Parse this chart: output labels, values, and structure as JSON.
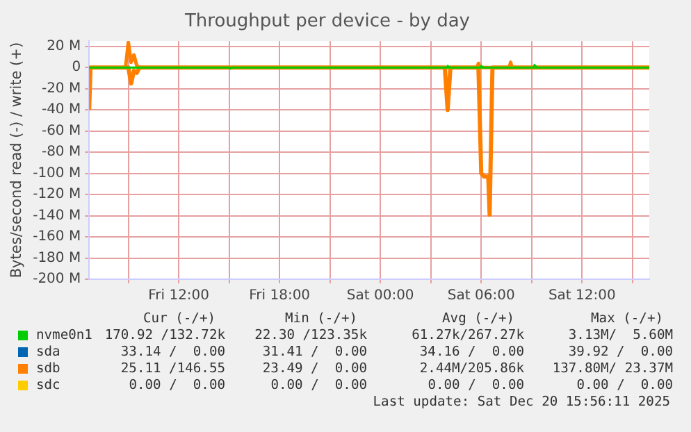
{
  "chart_data": {
    "type": "line",
    "title": "Throughput per device - by day",
    "ylabel": "Bytes/second read (-) / write (+)",
    "xlim": [
      "2025-12-19T06:40",
      "2025-12-20T16:00"
    ],
    "xticks": [
      {
        "value": "2025-12-19T09:00",
        "label": null
      },
      {
        "value": "2025-12-19T12:00",
        "label": "Fri 12:00"
      },
      {
        "value": "2025-12-19T15:00",
        "label": null
      },
      {
        "value": "2025-12-19T18:00",
        "label": "Fri 18:00"
      },
      {
        "value": "2025-12-19T21:00",
        "label": null
      },
      {
        "value": "2025-12-20T00:00",
        "label": "Sat 00:00"
      },
      {
        "value": "2025-12-20T03:00",
        "label": null
      },
      {
        "value": "2025-12-20T06:00",
        "label": "Sat 06:00"
      },
      {
        "value": "2025-12-20T09:00",
        "label": null
      },
      {
        "value": "2025-12-20T12:00",
        "label": "Sat 12:00"
      },
      {
        "value": "2025-12-20T15:00",
        "label": null
      }
    ],
    "ylim": [
      -200,
      25
    ],
    "yticks": [
      {
        "value": 20,
        "label": "20 M"
      },
      0,
      {
        "value": -20,
        "label": "-20 M"
      },
      {
        "value": -40,
        "label": "-40 M"
      },
      {
        "value": -60,
        "label": "-60 M"
      },
      {
        "value": -80,
        "label": "-80 M"
      },
      {
        "value": -100,
        "label": "-100 M"
      },
      {
        "value": -120,
        "label": "-120 M"
      },
      {
        "value": -140,
        "label": "-140 M"
      },
      {
        "value": -160,
        "label": "-160 M"
      },
      {
        "value": -180,
        "label": "-180 M"
      },
      {
        "value": -200,
        "label": "-200 M"
      }
    ],
    "grid": true,
    "legend": "bottom",
    "marker": "none",
    "line_style": "solid",
    "series": [
      {
        "name": "nvme0n1",
        "color": "#00cc00",
        "x": [
          "2025-12-19T06:40",
          "2025-12-20T03:55",
          "2025-12-20T04:00",
          "2025-12-20T04:10",
          "2025-12-20T05:55",
          "2025-12-20T06:00",
          "2025-12-20T06:10",
          "2025-12-20T09:05",
          "2025-12-20T09:10",
          "2025-12-20T09:20",
          "2025-12-20T16:00"
        ],
        "values": [
          0,
          0,
          2,
          0,
          0,
          2,
          0,
          0,
          3,
          0,
          0
        ]
      },
      {
        "color": "#00cc00",
        "x": [
          "2025-12-19T06:40",
          "2025-12-19T15:00",
          "2025-12-19T15:05",
          "2025-12-19T15:10",
          "2025-12-20T16:00"
        ],
        "values": [
          0,
          0,
          -1,
          0,
          0
        ]
      },
      {
        "name": "sda",
        "color": "#0066b3"
      },
      {
        "name": "sdb",
        "color": "#ff8000",
        "x": [
          "2025-12-19T06:40",
          "2025-12-19T08:50",
          "2025-12-19T09:00",
          "2025-12-19T09:10",
          "2025-12-19T09:20",
          "2025-12-19T09:30",
          "2025-12-19T09:40",
          "2025-12-20T05:45",
          "2025-12-20T05:50",
          "2025-12-20T05:55",
          "2025-12-20T07:40",
          "2025-12-20T07:45",
          "2025-12-20T07:50",
          "2025-12-20T16:00"
        ],
        "values": [
          0,
          0,
          24,
          5,
          12,
          2,
          0,
          0,
          4,
          0,
          0,
          5,
          0,
          0
        ]
      },
      {
        "color": "#ff8000",
        "x": [
          "2025-12-19T06:40",
          "2025-12-19T06:45",
          "2025-12-19T09:00",
          "2025-12-19T09:10",
          "2025-12-19T09:20",
          "2025-12-19T09:30",
          "2025-12-19T09:40",
          "2025-12-20T03:50",
          "2025-12-20T04:00",
          "2025-12-20T04:10",
          "2025-12-20T05:50",
          "2025-12-20T06:00",
          "2025-12-20T06:10",
          "2025-12-20T06:25",
          "2025-12-20T06:30",
          "2025-12-20T06:40",
          "2025-12-20T16:00"
        ],
        "values": [
          -40,
          0,
          0,
          -15,
          -3,
          -5,
          0,
          0,
          -40,
          0,
          0,
          -100,
          -103,
          -103,
          -139,
          0,
          0
        ]
      },
      {
        "name": "sdc",
        "color": "#ffcc00"
      }
    ],
    "annotations": [
      "Cur (-/+)",
      "Min (-/+)",
      "Avg (-/+)",
      "Max (-/+)",
      "170.92 /132.72k",
      "22.30 /123.35k",
      "61.27k/267.27k",
      "3.13M/  5.60M",
      "33.14 /  0.00",
      "31.41 /  0.00",
      "34.16 /  0.00",
      "39.92 /  0.00",
      "25.11 /146.55",
      "23.49 /  0.00",
      "2.44M/205.86k",
      "137.80M/ 23.37M",
      "0.00 /  0.00",
      "0.00 /  0.00",
      "0.00 /  0.00",
      "0.00 /  0.00",
      "Last update: Sat Dec 20 15:56:11 2025"
    ]
  }
}
